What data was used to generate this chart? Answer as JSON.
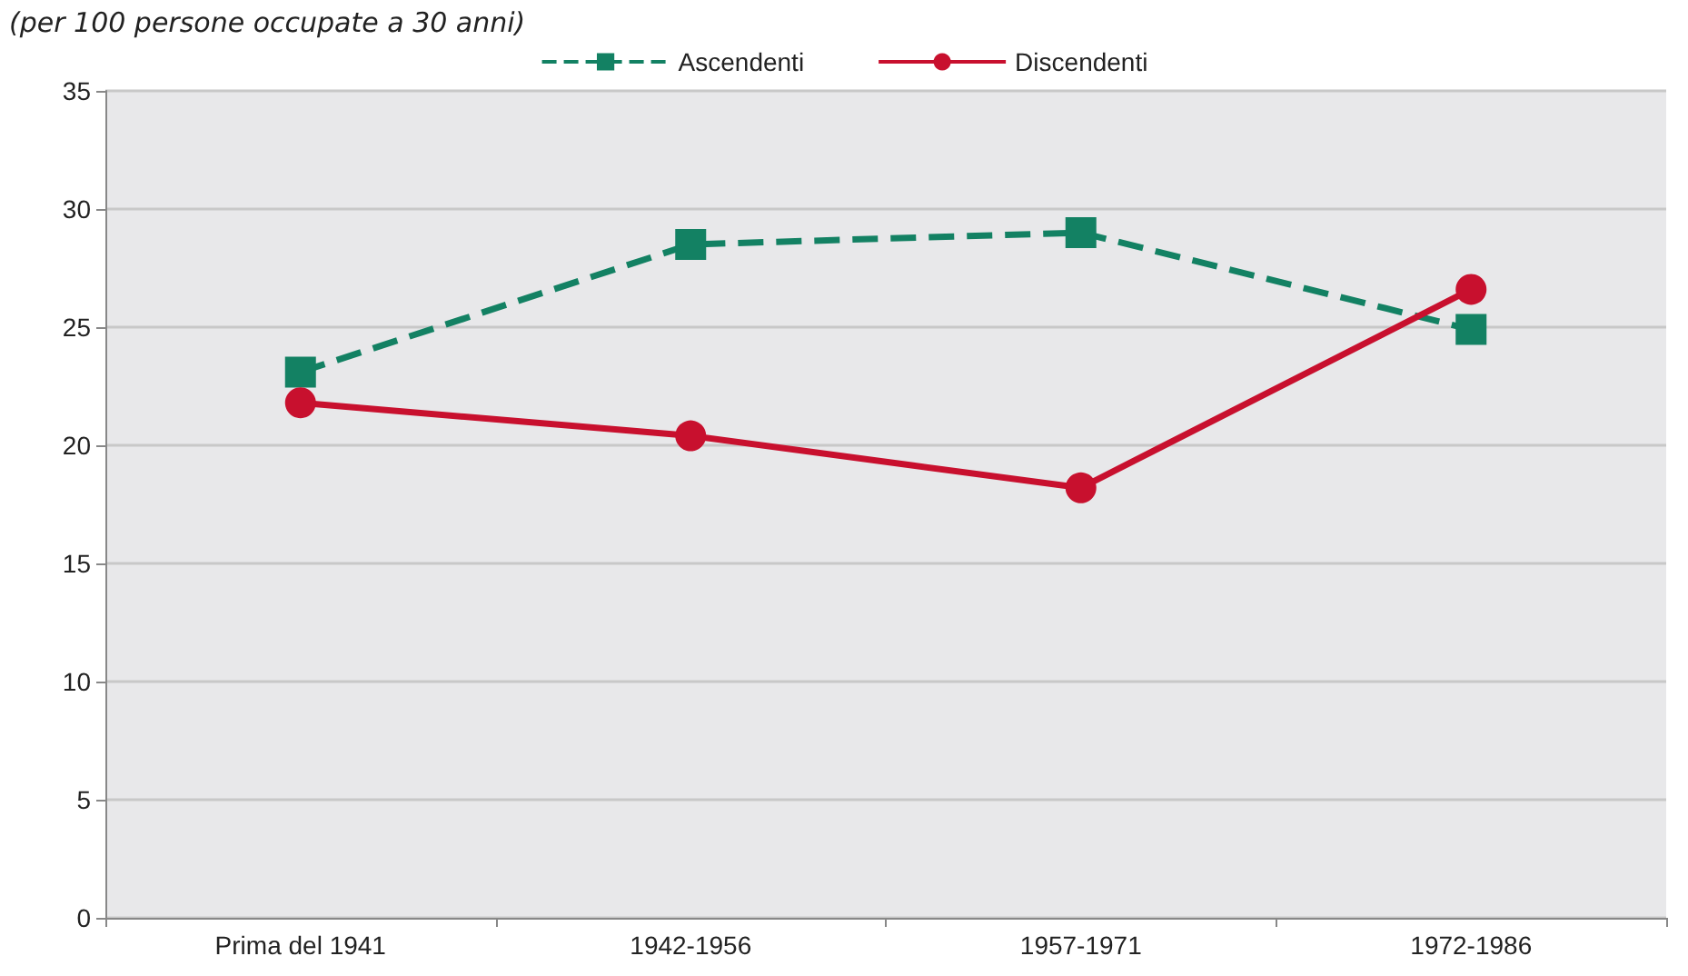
{
  "chart_data": {
    "type": "line",
    "title": "(per 100 persone occupate a 30 anni)",
    "categories": [
      "Prima del 1941",
      "1942-1956",
      "1957-1971",
      "1972-1986"
    ],
    "series": [
      {
        "name": "Ascendenti",
        "color": "#138163",
        "values": [
          23.1,
          28.5,
          29.0,
          24.9
        ],
        "marker": "square",
        "line_style": "dashed"
      },
      {
        "name": "Discendenti",
        "color": "#c8102e",
        "values": [
          21.8,
          20.4,
          18.2,
          26.6
        ],
        "marker": "circle",
        "line_style": "solid"
      }
    ],
    "ylim": [
      0,
      35
    ],
    "yticks": [
      0,
      5,
      10,
      15,
      20,
      25,
      30,
      35
    ],
    "grid": "y",
    "legend": "top"
  }
}
